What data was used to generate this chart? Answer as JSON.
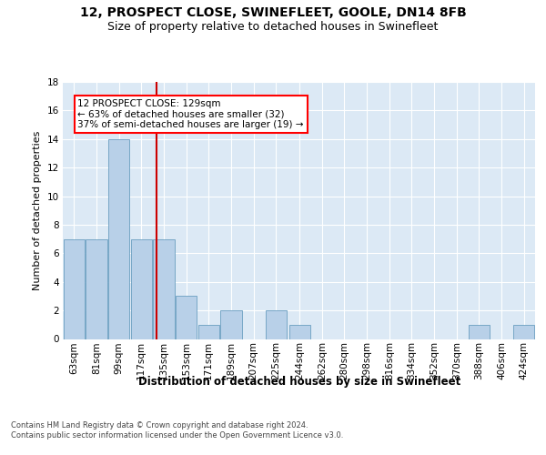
{
  "title": "12, PROSPECT CLOSE, SWINEFLEET, GOOLE, DN14 8FB",
  "subtitle": "Size of property relative to detached houses in Swinefleet",
  "xlabel_bottom": "Distribution of detached houses by size in Swinefleet",
  "ylabel": "Number of detached properties",
  "footer_line1": "Contains HM Land Registry data © Crown copyright and database right 2024.",
  "footer_line2": "Contains public sector information licensed under the Open Government Licence v3.0.",
  "annotation_line1": "12 PROSPECT CLOSE: 129sqm",
  "annotation_line2": "← 63% of detached houses are smaller (32)",
  "annotation_line3": "37% of semi-detached houses are larger (19) →",
  "bar_color": "#b8d0e8",
  "bar_edge_color": "#6a9ec0",
  "subject_line_color": "#cc0000",
  "subject_x": 129,
  "categories": [
    63,
    81,
    99,
    117,
    135,
    153,
    171,
    189,
    207,
    225,
    244,
    262,
    280,
    298,
    316,
    334,
    352,
    370,
    388,
    406,
    424
  ],
  "values": [
    7,
    7,
    14,
    7,
    7,
    3,
    1,
    2,
    0,
    2,
    1,
    0,
    0,
    0,
    0,
    0,
    0,
    0,
    1,
    0,
    1
  ],
  "ylim": [
    0,
    18
  ],
  "yticks": [
    0,
    2,
    4,
    6,
    8,
    10,
    12,
    14,
    16,
    18
  ],
  "xlim_left": 54,
  "xlim_right": 433,
  "background_color": "#dce9f5",
  "grid_color": "#ffffff",
  "title_fontsize": 10,
  "subtitle_fontsize": 9,
  "axis_label_fontsize": 8,
  "tick_fontsize": 7.5,
  "footer_fontsize": 6,
  "annotation_fontsize": 7.5,
  "xlabel_bottom_fontsize": 8.5
}
